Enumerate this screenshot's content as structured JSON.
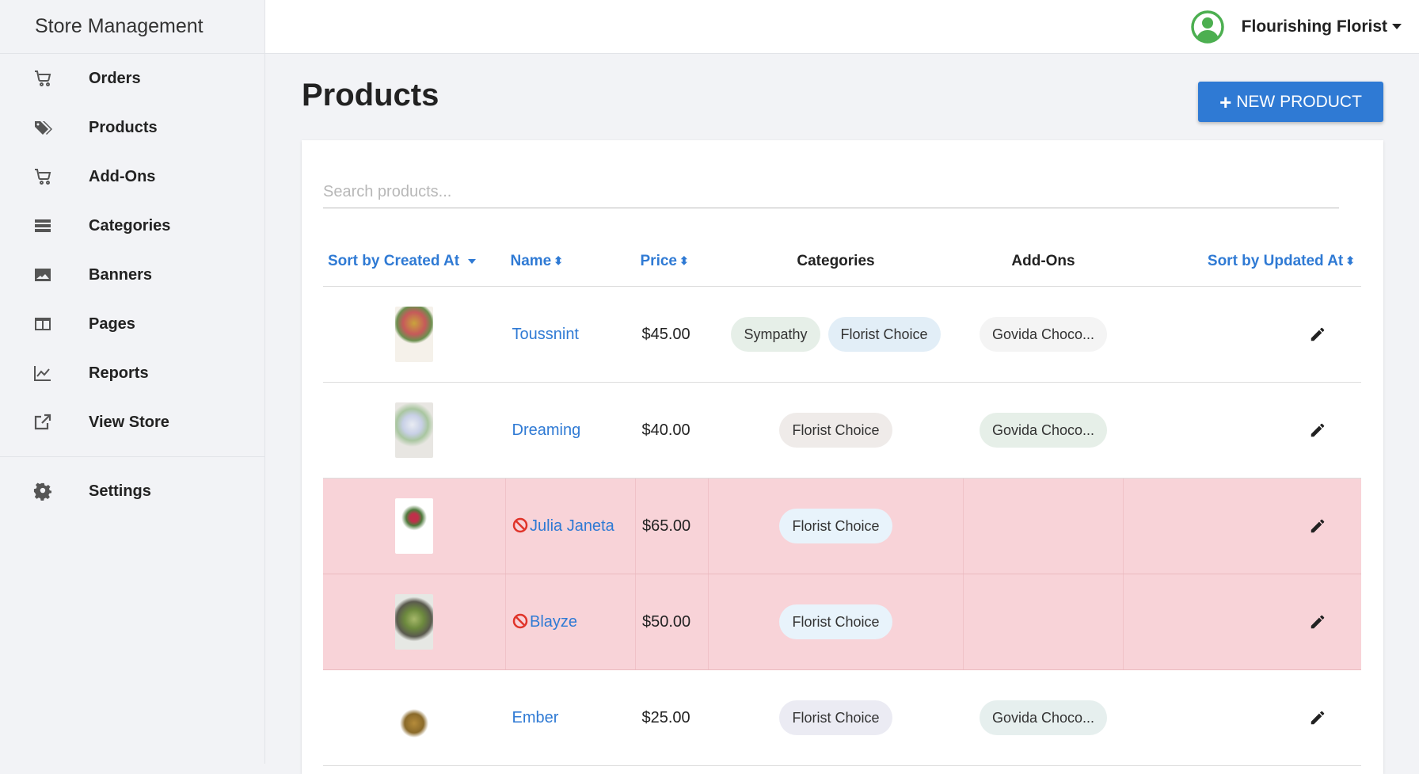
{
  "app": {
    "brand": "Store Management"
  },
  "sidebar": {
    "items": [
      {
        "label": "Orders",
        "icon": "cart-icon"
      },
      {
        "label": "Products",
        "icon": "tags-icon"
      },
      {
        "label": "Add-Ons",
        "icon": "cart-icon"
      },
      {
        "label": "Categories",
        "icon": "list-icon"
      },
      {
        "label": "Banners",
        "icon": "image-icon"
      },
      {
        "label": "Pages",
        "icon": "columns-icon"
      },
      {
        "label": "Reports",
        "icon": "chart-icon"
      },
      {
        "label": "View Store",
        "icon": "external-link-icon"
      },
      {
        "label": "Settings",
        "icon": "gear-icon"
      }
    ]
  },
  "topbar": {
    "user": "Flourishing Florist"
  },
  "page": {
    "title": "Products",
    "new_button": "NEW PRODUCT"
  },
  "search": {
    "placeholder": "Search products..."
  },
  "table": {
    "headers": {
      "created": "Sort by Created At",
      "name": "Name",
      "price": "Price",
      "categories": "Categories",
      "addons": "Add-Ons",
      "updated": "Sort by Updated At"
    },
    "rows": [
      {
        "name": "Toussnint",
        "price": "$45.00",
        "categories": [
          "Sympathy",
          "Florist Choice"
        ],
        "addons": [
          "Govida Choco..."
        ],
        "disabled": false
      },
      {
        "name": "Dreaming",
        "price": "$40.00",
        "categories": [
          "Florist Choice"
        ],
        "addons": [
          "Govida Choco..."
        ],
        "disabled": false
      },
      {
        "name": "Julia Janeta",
        "price": "$65.00",
        "categories": [
          "Florist Choice"
        ],
        "addons": [],
        "disabled": true
      },
      {
        "name": "Blayze",
        "price": "$50.00",
        "categories": [
          "Florist Choice"
        ],
        "addons": [],
        "disabled": true
      },
      {
        "name": "Ember",
        "price": "$25.00",
        "categories": [
          "Florist Choice"
        ],
        "addons": [
          "Govida Choco..."
        ],
        "disabled": false
      }
    ]
  },
  "colors": {
    "accent": "#2f7ad4",
    "disabled_row": "#f8d3d8",
    "avatar": "#4caf50"
  }
}
